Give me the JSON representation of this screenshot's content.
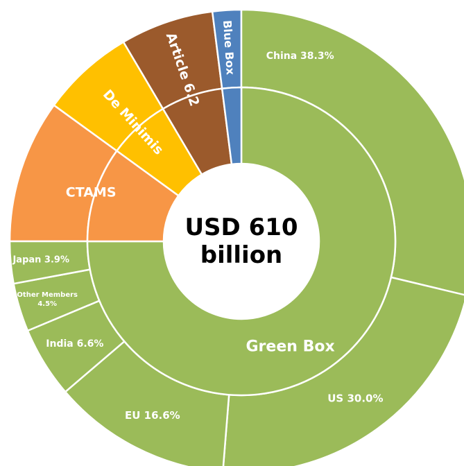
{
  "chart_data": {
    "type": "sunburst",
    "total_label": [
      "USD 610",
      "billion"
    ],
    "colors": {
      "green_box": "#9bbb59",
      "ctams": "#f79646",
      "de_minimis": "#ffc000",
      "article_6_2": "#9b5a2c",
      "blue_box": "#4f81bd",
      "separator": "#ffffff"
    },
    "inner_ring": [
      {
        "name": "Green Box",
        "label": "Green Box",
        "share": 0.75,
        "color_key": "green_box"
      },
      {
        "name": "CTAMS",
        "label": "CTAMS",
        "share": 0.1,
        "color_key": "ctams"
      },
      {
        "name": "De Minimis",
        "label": "De Minimis",
        "share": 0.065,
        "color_key": "de_minimis"
      },
      {
        "name": "Article 6.2",
        "label": "Article 6.2",
        "share": 0.065,
        "color_key": "article_6_2"
      },
      {
        "name": "Blue Box",
        "label": "Blue Box",
        "share": 0.02,
        "color_key": "blue_box"
      }
    ],
    "green_box_breakdown": [
      {
        "name": "China",
        "label": "China 38.3%",
        "percent": 38.3
      },
      {
        "name": "US",
        "label": "US 30.0%",
        "percent": 30.0
      },
      {
        "name": "EU",
        "label": "EU 16.6%",
        "percent": 16.6
      },
      {
        "name": "India",
        "label": "India 6.6%",
        "percent": 6.6
      },
      {
        "name": "Other Members",
        "label": [
          "Other Members",
          "4.5%"
        ],
        "percent": 4.5
      },
      {
        "name": "Japan",
        "label": "Japan 3.9%",
        "percent": 3.9
      }
    ]
  }
}
